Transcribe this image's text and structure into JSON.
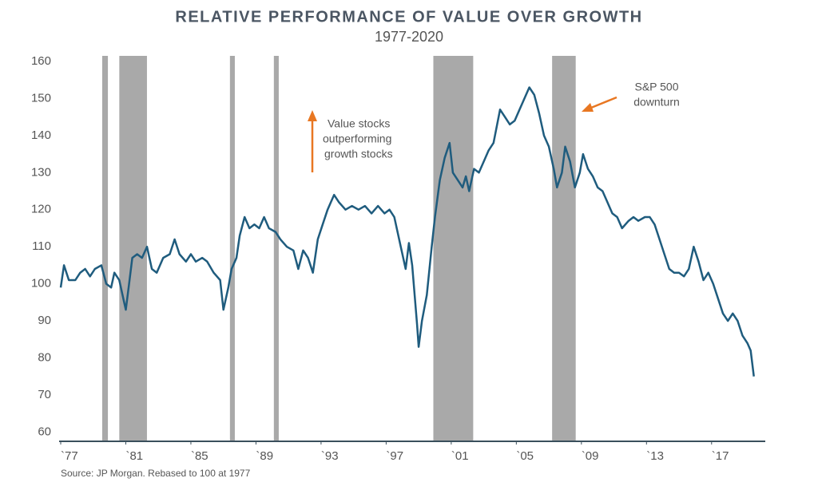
{
  "chart_data": {
    "type": "line",
    "title": "RELATIVE PERFORMANCE OF VALUE OVER GROWTH",
    "subtitle": "1977-2020",
    "annotations": [
      "Value stocks",
      "outperforming",
      "growth stocks",
      "S&P 500",
      "downturn"
    ],
    "source": "Source: JP Morgan. Rebased to 100 at 1977",
    "xlim": [
      1977,
      2020.3
    ],
    "ylim": [
      57.5,
      161.5
    ],
    "yticks": [
      60,
      70,
      80,
      90,
      100,
      110,
      120,
      130,
      140,
      150,
      160
    ],
    "xticks": [
      {
        "value": 1977,
        "label": "`77"
      },
      {
        "value": 1981,
        "label": "`81"
      },
      {
        "value": 1985,
        "label": "`85"
      },
      {
        "value": 1989,
        "label": "`89"
      },
      {
        "value": 1993,
        "label": "`93"
      },
      {
        "value": 1997,
        "label": "`97"
      },
      {
        "value": 2001,
        "label": "`01"
      },
      {
        "value": 2005,
        "label": "`05"
      },
      {
        "value": 2009,
        "label": "`09"
      },
      {
        "value": 2013,
        "label": "`13"
      },
      {
        "value": 2017,
        "label": "`17"
      }
    ],
    "shaded_periods": [
      [
        1979.55,
        1979.9
      ],
      [
        1980.6,
        1982.3
      ],
      [
        1987.4,
        1987.7
      ],
      [
        1990.1,
        1990.4
      ],
      [
        1999.9,
        2002.35
      ],
      [
        2007.2,
        2008.65
      ]
    ],
    "shade_color": "#a9a9a9",
    "grid": false,
    "series": [
      {
        "name": "Value over growth",
        "color": "#1f5c7e",
        "x": [
          1977.0,
          1977.2,
          1977.5,
          1977.9,
          1978.2,
          1978.5,
          1978.8,
          1979.1,
          1979.5,
          1979.8,
          1980.1,
          1980.3,
          1980.6,
          1980.9,
          1981.0,
          1981.2,
          1981.4,
          1981.7,
          1982.0,
          1982.3,
          1982.6,
          1982.9,
          1983.3,
          1983.7,
          1984.0,
          1984.3,
          1984.7,
          1985.0,
          1985.3,
          1985.7,
          1986.0,
          1986.4,
          1986.8,
          1987.0,
          1987.3,
          1987.5,
          1987.8,
          1988.0,
          1988.3,
          1988.6,
          1988.9,
          1989.2,
          1989.5,
          1989.8,
          1990.2,
          1990.5,
          1990.9,
          1991.3,
          1991.6,
          1991.9,
          1992.2,
          1992.5,
          1992.8,
          1993.1,
          1993.4,
          1993.8,
          1994.1,
          1994.5,
          1994.9,
          1995.3,
          1995.7,
          1996.1,
          1996.5,
          1996.9,
          1997.2,
          1997.5,
          1997.9,
          1998.2,
          1998.4,
          1998.6,
          1998.9,
          1999.0,
          1999.2,
          1999.5,
          1999.8,
          2000.0,
          2000.3,
          2000.6,
          2000.9,
          2001.1,
          2001.4,
          2001.7,
          2001.9,
          2002.1,
          2002.4,
          2002.7,
          2003.0,
          2003.3,
          2003.6,
          2004.0,
          2004.3,
          2004.6,
          2004.9,
          2005.2,
          2005.5,
          2005.8,
          2006.1,
          2006.4,
          2006.7,
          2007.0,
          2007.3,
          2007.5,
          2007.8,
          2008.0,
          2008.3,
          2008.6,
          2008.9,
          2009.1,
          2009.4,
          2009.7,
          2010.0,
          2010.3,
          2010.6,
          2010.9,
          2011.2,
          2011.5,
          2011.9,
          2012.2,
          2012.5,
          2012.9,
          2013.2,
          2013.5,
          2013.8,
          2014.1,
          2014.4,
          2014.7,
          2015.0,
          2015.3,
          2015.6,
          2015.9,
          2016.2,
          2016.5,
          2016.8,
          2017.1,
          2017.4,
          2017.7,
          2018.0,
          2018.3,
          2018.6,
          2018.9,
          2019.2,
          2019.4,
          2019.6
        ],
        "values": [
          99,
          105,
          101,
          101,
          103,
          104,
          102,
          104,
          105,
          100,
          99,
          103,
          101,
          95,
          93,
          100,
          107,
          108,
          107,
          110,
          104,
          103,
          107,
          108,
          112,
          108,
          106,
          108,
          106,
          107,
          106,
          103,
          101,
          93,
          99,
          104,
          107,
          113,
          118,
          115,
          116,
          115,
          118,
          115,
          114,
          112,
          110,
          109,
          104,
          109,
          107,
          103,
          112,
          116,
          120,
          124,
          122,
          120,
          121,
          120,
          121,
          119,
          121,
          119,
          120,
          118,
          110,
          104,
          111,
          105,
          89,
          83,
          90,
          97,
          110,
          118,
          128,
          134,
          138,
          130,
          128,
          126,
          129,
          125,
          131,
          130,
          133,
          136,
          138,
          147,
          145,
          143,
          144,
          147,
          150,
          153,
          151,
          146,
          140,
          137,
          131,
          126,
          130,
          137,
          133,
          126,
          130,
          135,
          131,
          129,
          126,
          125,
          122,
          119,
          118,
          115,
          117,
          118,
          117,
          118,
          118,
          116,
          112,
          108,
          104,
          103,
          103,
          102,
          104,
          110,
          106,
          101,
          103,
          100,
          96,
          92,
          90,
          92,
          90,
          86,
          84,
          82,
          75
        ]
      }
    ]
  }
}
